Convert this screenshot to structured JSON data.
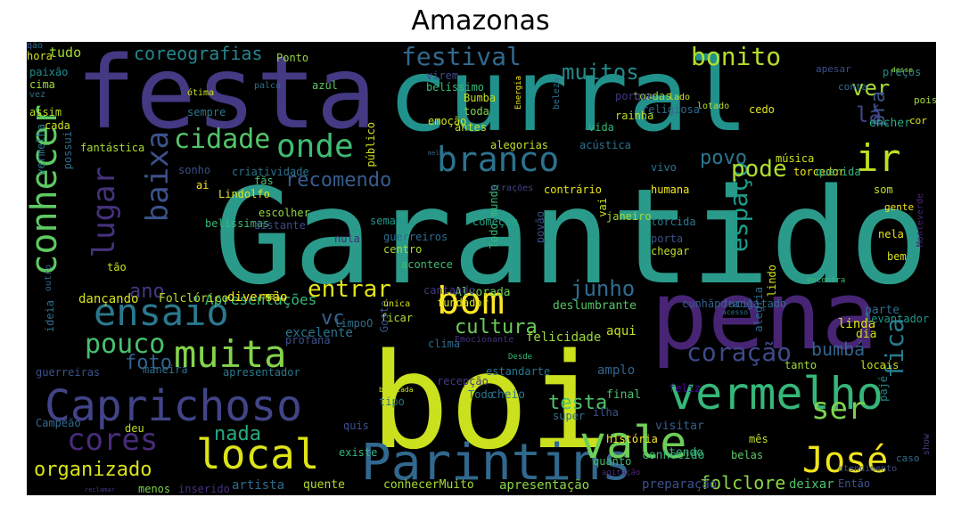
{
  "title": "Amazonas",
  "words": [
    {
      "text": "Garantido",
      "color": "#2a9b8b"
    },
    {
      "text": "boi",
      "color": "#cbe11e"
    },
    {
      "text": "festa",
      "color": "#443983"
    },
    {
      "text": "curral",
      "color": "#21918c"
    },
    {
      "text": "pena",
      "color": "#482475"
    },
    {
      "text": "Parintins",
      "color": "#31688e"
    },
    {
      "text": "Caprichoso",
      "color": "#414487"
    },
    {
      "text": "vermelho",
      "color": "#35b779"
    },
    {
      "text": "vale",
      "color": "#6ece58"
    },
    {
      "text": "local",
      "color": "#dde318"
    },
    {
      "text": "ensaio",
      "color": "#2a788e"
    },
    {
      "text": "muita",
      "color": "#84d44b"
    },
    {
      "text": "conhecer",
      "color": "#5ec962"
    },
    {
      "text": "bom",
      "color": "#fde725"
    },
    {
      "text": "branco",
      "color": "#2c728e"
    },
    {
      "text": "onde",
      "color": "#3fbc73"
    },
    {
      "text": "baixa",
      "color": "#3b528b"
    },
    {
      "text": "lugar",
      "color": "#46327e"
    },
    {
      "text": "José",
      "color": "#f1e51d"
    },
    {
      "text": "ser",
      "color": "#7ad151"
    },
    {
      "text": "cores",
      "color": "#472c7a"
    },
    {
      "text": "ir",
      "color": "#c2df23"
    },
    {
      "text": "pouco",
      "color": "#48c16e"
    },
    {
      "text": "cidade",
      "color": "#52c569"
    },
    {
      "text": "espaço",
      "color": "#1e9c89"
    },
    {
      "text": "fica",
      "color": "#287d8e"
    },
    {
      "text": "coração",
      "color": "#3e4a89"
    },
    {
      "text": "festival",
      "color": "#31688e"
    },
    {
      "text": "bonito",
      "color": "#b5de2b"
    },
    {
      "text": "muitos",
      "color": "#238a8d"
    },
    {
      "text": "coreografias",
      "color": "#24868e"
    },
    {
      "text": "ver",
      "color": "#a8db34"
    },
    {
      "text": "lá",
      "color": "#424186"
    },
    {
      "text": "pra",
      "color": "#3a548c"
    },
    {
      "text": "pode",
      "color": "#b0dd2f"
    },
    {
      "text": "povo",
      "color": "#2a768e"
    },
    {
      "text": "recomendo",
      "color": "#365c8d"
    },
    {
      "text": "entrar",
      "color": "#e2e418"
    },
    {
      "text": "junho",
      "color": "#2f6c8e"
    },
    {
      "text": "cultura",
      "color": "#6ccd5a"
    },
    {
      "text": "vc",
      "color": "#34618d"
    },
    {
      "text": "foto",
      "color": "#35608d"
    },
    {
      "text": "nada",
      "color": "#25ab82"
    },
    {
      "text": "organizado",
      "color": "#d8e219"
    },
    {
      "text": "folclore",
      "color": "#8ed645"
    },
    {
      "text": "bumbá",
      "color": "#33638d"
    },
    {
      "text": "ano",
      "color": "#453781"
    },
    {
      "text": "tudo",
      "color": "#a2da37"
    },
    {
      "text": "paixão",
      "color": "#228c8d"
    },
    {
      "text": "cima",
      "color": "#a0da39"
    },
    {
      "text": "vez",
      "color": "#2e6e8e"
    },
    {
      "text": "assim",
      "color": "#bddf26"
    },
    {
      "text": "vermelha",
      "color": "#2a788e"
    },
    {
      "text": "cada",
      "color": "#d0e11c"
    },
    {
      "text": "beleza",
      "color": "#2e6f8e"
    },
    {
      "text": "Apresentações",
      "color": "#37b878"
    },
    {
      "text": "dançando",
      "color": "#d5e21a"
    },
    {
      "text": "Folclórico",
      "color": "#b8de29"
    },
    {
      "text": "diversão",
      "color": "#f6e620"
    },
    {
      "text": "excelente",
      "color": "#2c738e"
    },
    {
      "text": "Alvorada",
      "color": "#6ece58"
    },
    {
      "text": "deslumbrante",
      "color": "#56c667"
    },
    {
      "text": "felicidade",
      "color": "#9dd93b"
    },
    {
      "text": "aqui",
      "color": "#c5e021"
    },
    {
      "text": "amplo",
      "color": "#32648e"
    },
    {
      "text": "final",
      "color": "#4ac16d"
    },
    {
      "text": "testa",
      "color": "#50c46a"
    },
    {
      "text": "cheio",
      "color": "#2a788e"
    },
    {
      "text": "ilha",
      "color": "#3b528b"
    },
    {
      "text": "super",
      "color": "#2c738e"
    },
    {
      "text": "visitar",
      "color": "#34608d"
    },
    {
      "text": "história",
      "color": "#fde725"
    },
    {
      "text": "quanto",
      "color": "#3fbc73"
    },
    {
      "text": "agitação",
      "color": "#482878"
    },
    {
      "text": "preparação",
      "color": "#3c508b"
    },
    {
      "text": "apresentação",
      "color": "#8bd646"
    },
    {
      "text": "conhecerMuito",
      "color": "#a5db36"
    },
    {
      "text": "artista",
      "color": "#2f6b8e"
    },
    {
      "text": "quente",
      "color": "#b2dd2d"
    },
    {
      "text": "inserido",
      "color": "#472f7d"
    },
    {
      "text": "menos",
      "color": "#7fd34e"
    },
    {
      "text": "reclamar",
      "color": "#453882"
    },
    {
      "text": "deixar",
      "color": "#4ec36b"
    },
    {
      "text": "Então",
      "color": "#3b528b"
    },
    {
      "text": "atendimento",
      "color": "#3b518b"
    },
    {
      "text": "caso",
      "color": "#2e6d8e"
    },
    {
      "text": "show",
      "color": "#433e85"
    },
    {
      "text": "belas",
      "color": "#5cc863"
    },
    {
      "text": "mês",
      "color": "#c0df25"
    },
    {
      "text": "conhecido",
      "color": "#35b779"
    },
    {
      "text": "tendo",
      "color": "#37b878"
    },
    {
      "text": "feliz",
      "color": "#4e02a2"
    },
    {
      "text": "tanto",
      "color": "#a0da39"
    },
    {
      "text": "locais",
      "color": "#c5e021"
    },
    {
      "text": "pajé",
      "color": "#25848e"
    },
    {
      "text": "dia",
      "color": "#c8e020"
    },
    {
      "text": "parte",
      "color": "#2e6e8e"
    },
    {
      "text": "linda",
      "color": "#dde318"
    },
    {
      "text": "levantador",
      "color": "#1f988b"
    },
    {
      "text": "Monteverde",
      "color": "#482576"
    },
    {
      "text": "bem",
      "color": "#d8e219"
    },
    {
      "text": "nela",
      "color": "#e5e419"
    },
    {
      "text": "gente",
      "color": "#f4e61e"
    },
    {
      "text": "som",
      "color": "#c2df23"
    },
    {
      "text": "torcedor",
      "color": "#f1e51d"
    },
    {
      "text": "querida",
      "color": "#35b779"
    },
    {
      "text": "encher",
      "color": "#26ad81"
    },
    {
      "text": "música",
      "color": "#cde11d"
    },
    {
      "text": "cor",
      "color": "#e7e419"
    },
    {
      "text": "pois",
      "color": "#a5db36"
    },
    {
      "text": "conta",
      "color": "#2d708e"
    },
    {
      "text": "apesar",
      "color": "#3c4f8a"
    },
    {
      "text": "preços",
      "color": "#23888e"
    },
    {
      "text": "desse",
      "color": "#90d743"
    },
    {
      "text": "Ponto",
      "color": "#93d741"
    },
    {
      "text": "virem",
      "color": "#3e4c8a"
    },
    {
      "text": "belíssimo",
      "color": "#38b977"
    },
    {
      "text": "azul",
      "color": "#5ec962"
    },
    {
      "text": "palco",
      "color": "#2e6f8e"
    },
    {
      "text": "ótima",
      "color": "#d2e21b"
    },
    {
      "text": "Bumba",
      "color": "#c2df23"
    },
    {
      "text": "toda",
      "color": "#81d34d"
    },
    {
      "text": "Energia",
      "color": "#f1e51d"
    },
    {
      "text": "toadas",
      "color": "#93d741"
    },
    {
      "text": "religiosa",
      "color": "#30698e"
    },
    {
      "text": "porque",
      "color": "#453581"
    },
    {
      "text": "rainha",
      "color": "#b5de2b"
    },
    {
      "text": "lado",
      "color": "#d0e11c"
    },
    {
      "text": "lotado",
      "color": "#bade28"
    },
    {
      "text": "cedo",
      "color": "#e2e418"
    },
    {
      "text": "vida",
      "color": "#35b779"
    },
    {
      "text": "antes",
      "color": "#c2df23"
    },
    {
      "text": "emoção",
      "color": "#d0e11c"
    },
    {
      "text": "sempre",
      "color": "#2a778e"
    },
    {
      "text": "hora",
      "color": "#cde11d"
    },
    {
      "text": "fantástica",
      "color": "#a8db34"
    },
    {
      "text": "possui",
      "color": "#2d708e"
    },
    {
      "text": "sonho",
      "color": "#3c508b"
    },
    {
      "text": "criatividade",
      "color": "#2c728e"
    },
    {
      "text": "ai",
      "color": "#f8e621"
    },
    {
      "text": "fãs",
      "color": "#4ac16d"
    },
    {
      "text": "Lindolfo",
      "color": "#e5e419"
    },
    {
      "text": "escolher",
      "color": "#90d743"
    },
    {
      "text": "belíssimas",
      "color": "#38b977"
    },
    {
      "text": "distante",
      "color": "#3e4989"
    },
    {
      "text": "público",
      "color": "#d0e11c"
    },
    {
      "text": "semana",
      "color": "#1f988b"
    },
    {
      "text": "guerreiros",
      "color": "#2e6e8e"
    },
    {
      "text": "centro",
      "color": "#a5db36"
    },
    {
      "text": "acontece",
      "color": "#3fbc73"
    },
    {
      "text": "começam",
      "color": "#22a785"
    },
    {
      "text": "povão",
      "color": "#3e4c8a"
    },
    {
      "text": "vai",
      "color": "#c8e020"
    },
    {
      "text": "janeiro",
      "color": "#a2da37"
    },
    {
      "text": "torcida",
      "color": "#2a788e"
    },
    {
      "text": "porta",
      "color": "#3b528b"
    },
    {
      "text": "chegar",
      "color": "#c2df23"
    },
    {
      "text": "alegria",
      "color": "#2f6b8e"
    },
    {
      "text": "lindo",
      "color": "#d2e21b"
    },
    {
      "text": "facilitado",
      "color": "#2f6c8e"
    },
    {
      "text": "cunhãporanga",
      "color": "#34618d"
    },
    {
      "text": "encontra",
      "color": "#37b878"
    },
    {
      "text": "vivo",
      "color": "#2a768e"
    },
    {
      "text": "humana",
      "color": "#f4e61e"
    },
    {
      "text": "contrário",
      "color": "#e5e419"
    },
    {
      "text": "alegorias",
      "color": "#c2df23"
    },
    {
      "text": "acústica",
      "color": "#2d708e"
    },
    {
      "text": "Todo mundo",
      "color": "#38b977"
    },
    {
      "text": "atrações",
      "color": "#404588"
    },
    {
      "text": "Emocionante",
      "color": "#472f7d"
    },
    {
      "text": "cantando",
      "color": "#443983"
    },
    {
      "text": "fundador",
      "color": "#dde318"
    },
    {
      "text": "ficar",
      "color": "#b0dd2f"
    },
    {
      "text": "Gosto",
      "color": "#3b528b"
    },
    {
      "text": "única",
      "color": "#d5e21a"
    },
    {
      "text": "clima",
      "color": "#2f6b8e"
    },
    {
      "text": "profana",
      "color": "#3b528b"
    },
    {
      "text": "limpoO",
      "color": "#2e6e8e"
    },
    {
      "text": "tão",
      "color": "#cde11d"
    },
    {
      "text": "outro",
      "color": "#33638d"
    },
    {
      "text": "ideia",
      "color": "#2f6b8e"
    },
    {
      "text": "guerreiras",
      "color": "#3b528b"
    },
    {
      "text": "apresentador",
      "color": "#2a788e"
    },
    {
      "text": "maneira",
      "color": "#2d708e"
    },
    {
      "text": "Desde",
      "color": "#37b878"
    },
    {
      "text": "batucada",
      "color": "#c8e020"
    },
    {
      "text": "tipo",
      "color": "#2c728e"
    },
    {
      "text": "recepção",
      "color": "#453882"
    },
    {
      "text": "Todo",
      "color": "#2a778e"
    },
    {
      "text": "estandarte",
      "color": "#2a788e"
    },
    {
      "text": "quis",
      "color": "#3b528b"
    },
    {
      "text": "existe",
      "color": "#35b779"
    },
    {
      "text": "Campeão",
      "color": "#2f6b8e"
    },
    {
      "text": "deu",
      "color": "#bddf26"
    },
    {
      "text": "acesso",
      "color": "#2d708e"
    },
    {
      "text": "melhor",
      "color": "#31688e"
    },
    {
      "text": "meio",
      "color": "#d8e219"
    },
    {
      "text": "nula",
      "color": "#482878"
    },
    {
      "text": "não",
      "color": "#2c728e"
    },
    {
      "text": "q",
      "color": "#3b528b"
    }
  ]
}
